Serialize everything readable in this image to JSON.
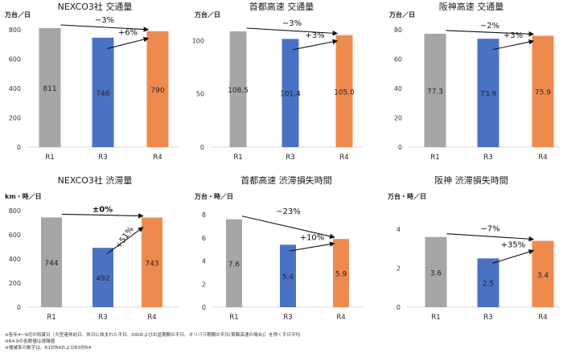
{
  "colors": {
    "R1": "#a6a6a6",
    "R3": "#4a72c4",
    "R4": "#ed8b4f",
    "axis": "#d9d9d9",
    "text": "#1a1a1a"
  },
  "chart_data": [
    {
      "type": "bar",
      "title": "NEXCO3社 交通量",
      "ylabel": "万台／日",
      "categories": [
        "R1",
        "R3",
        "R4"
      ],
      "values": [
        811,
        746,
        790
      ],
      "value_labels": [
        "811",
        "746",
        "790"
      ],
      "ylim": [
        0,
        800
      ],
      "yticks": [
        0,
        200,
        400,
        600,
        800
      ],
      "grid": false,
      "annotations": [
        {
          "text": "−3%",
          "from": "R1",
          "to": "R4"
        },
        {
          "text": "+6%",
          "from": "R3",
          "to": "R4"
        }
      ]
    },
    {
      "type": "bar",
      "title": "首都高速 交通量",
      "ylabel": "万台／日",
      "categories": [
        "R1",
        "R3",
        "R4"
      ],
      "values": [
        108.5,
        101.4,
        105.0
      ],
      "value_labels": [
        "108.5",
        "101.4",
        "105.0"
      ],
      "ylim": [
        0,
        110
      ],
      "yticks": [
        0,
        50,
        100
      ],
      "grid": false,
      "annotations": [
        {
          "text": "−3%",
          "from": "R1",
          "to": "R4"
        },
        {
          "text": "+3%",
          "from": "R3",
          "to": "R4"
        }
      ]
    },
    {
      "type": "bar",
      "title": "阪神高速 交通量",
      "ylabel": "万台／日",
      "categories": [
        "R1",
        "R3",
        "R4"
      ],
      "values": [
        77.3,
        73.9,
        75.9
      ],
      "value_labels": [
        "77.3",
        "73.9",
        "75.9"
      ],
      "ylim": [
        0,
        80
      ],
      "yticks": [
        0,
        20,
        40,
        60,
        80
      ],
      "grid": false,
      "annotations": [
        {
          "text": "−2%",
          "from": "R1",
          "to": "R4"
        },
        {
          "text": "+3%",
          "from": "R3",
          "to": "R4"
        }
      ]
    },
    {
      "type": "bar",
      "title": "NEXCO3社 渋滞量",
      "ylabel": "km・時／日",
      "categories": [
        "R1",
        "R3",
        "R4"
      ],
      "values": [
        744,
        492,
        743
      ],
      "value_labels": [
        "744",
        "492",
        "743"
      ],
      "ylim": [
        0,
        800
      ],
      "yticks": [
        0,
        200,
        400,
        600,
        800
      ],
      "grid": false,
      "annotations": [
        {
          "text": "±0%",
          "from": "R1",
          "to": "R4"
        },
        {
          "text": "+51%",
          "from": "R3",
          "to": "R4"
        }
      ]
    },
    {
      "type": "bar",
      "title": "首都高速 渋滞損失時間",
      "ylabel": "万台・時／日",
      "categories": [
        "R1",
        "R3",
        "R4"
      ],
      "values": [
        7.6,
        5.4,
        5.9
      ],
      "value_labels": [
        "7.6",
        "5.4",
        "5.9"
      ],
      "ylim": [
        0,
        8
      ],
      "yticks": [
        0,
        2,
        4,
        6,
        8
      ],
      "grid": false,
      "annotations": [
        {
          "text": "−23%",
          "from": "R1",
          "to": "R4"
        },
        {
          "text": "+10%",
          "from": "R3",
          "to": "R4"
        }
      ]
    },
    {
      "type": "bar",
      "title": "阪神 渋滞損失時間",
      "ylabel": "万台・時／日",
      "categories": [
        "R1",
        "R3",
        "R4"
      ],
      "values": [
        3.6,
        2.5,
        3.4
      ],
      "value_labels": [
        "3.6",
        "2.5",
        "3.4"
      ],
      "ylim": [
        0,
        4
      ],
      "yticks": [
        0,
        2,
        4
      ],
      "grid": false,
      "annotations": [
        {
          "text": "−7%",
          "from": "R1",
          "to": "R4"
        },
        {
          "text": "+35%",
          "from": "R3",
          "to": "R4"
        }
      ]
    }
  ],
  "footnotes": [
    "※各年4～9月の特異日（大型連休前日、休日に挟まれた平日、GWおよびお盆期間の平日、オリパラ期間の平日(首都高速の場合)）を除く平日平均",
    "※R4.9の各数値は速報値",
    "※増減率の数字は、R1対R4およびR3対R4"
  ]
}
